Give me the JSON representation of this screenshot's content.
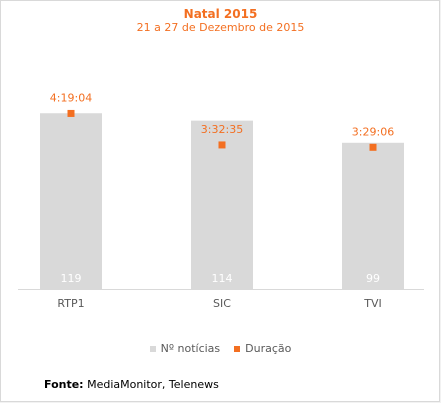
{
  "chart_data": {
    "type": "bar",
    "title": "Natal 2015",
    "subtitle": "21 a 27 de Dezembro de 2015",
    "categories": [
      "RTP1",
      "SIC",
      "TVI"
    ],
    "series": [
      {
        "name": "Nº notícias",
        "values": [
          119,
          114,
          99
        ],
        "color": "#d9d9d9",
        "labels": [
          "119",
          "114",
          "99"
        ]
      },
      {
        "name": "Duração",
        "values_seconds": [
          15544,
          12755,
          12546
        ],
        "labels": [
          "4:19:04",
          "3:32:35",
          "3:29:06"
        ],
        "color": "#f36f21"
      }
    ],
    "ylim": [
      0,
      130
    ],
    "duration_ylim_seconds": [
      0,
      17000
    ],
    "grid": false,
    "legend": "bottom"
  },
  "legend": {
    "bars_label": "Nº notícias",
    "duration_label": "Duração"
  },
  "source": {
    "label": "Fonte:",
    "text": "MediaMonitor, Telenews"
  }
}
